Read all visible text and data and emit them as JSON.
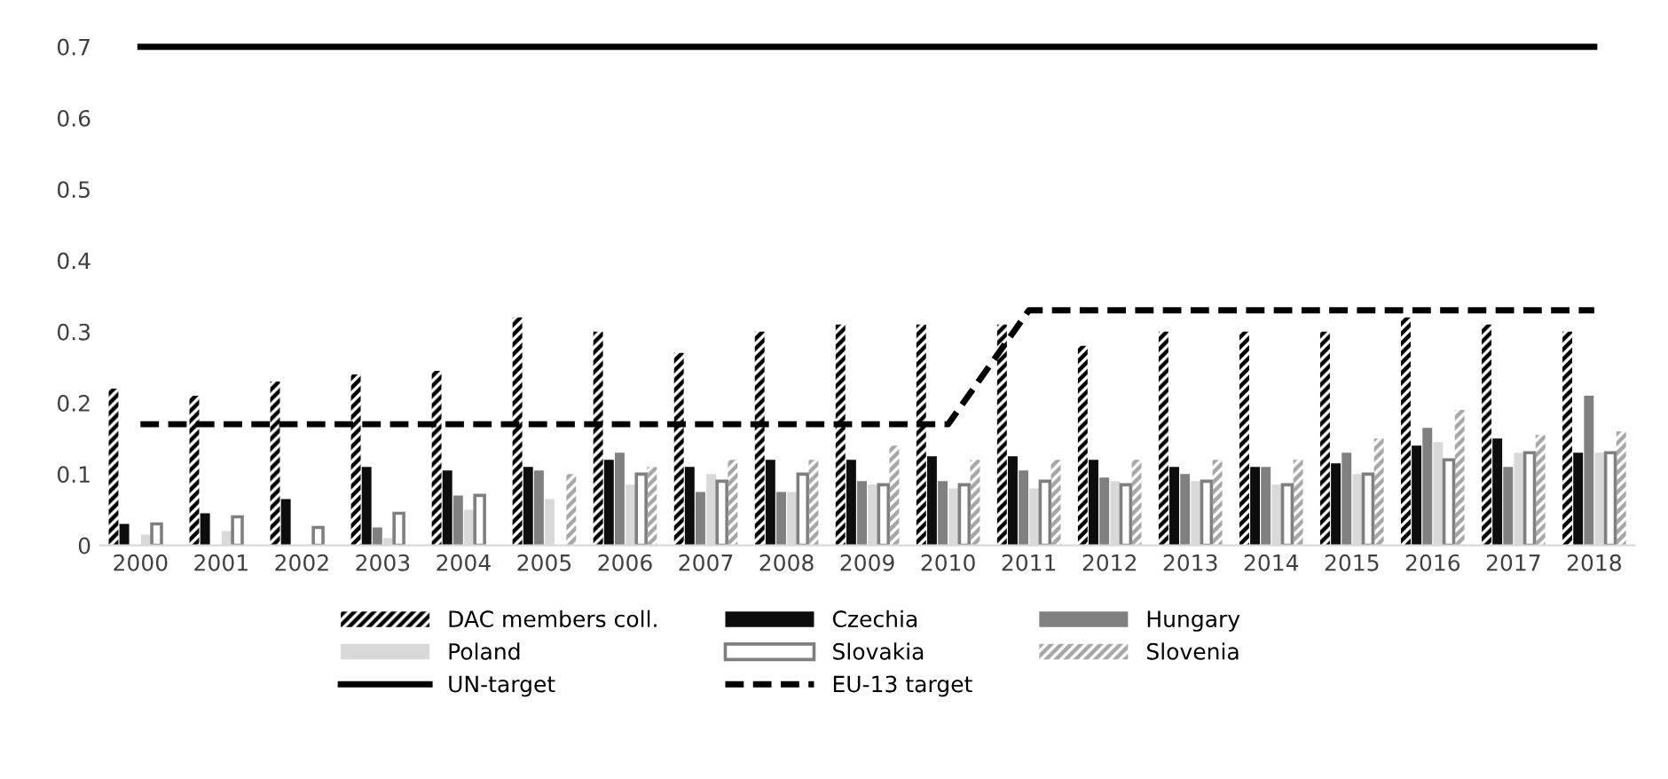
{
  "chart_data": {
    "type": "bar",
    "categories": [
      "2000",
      "2001",
      "2002",
      "2003",
      "2004",
      "2005",
      "2006",
      "2007",
      "2008",
      "2009",
      "2010",
      "2011",
      "2012",
      "2013",
      "2014",
      "2015",
      "2016",
      "2017",
      "2018"
    ],
    "series": [
      {
        "name": "DAC members coll.",
        "color": "#000000",
        "values": [
          0.22,
          0.21,
          0.23,
          0.24,
          0.245,
          0.32,
          0.3,
          0.27,
          0.3,
          0.31,
          0.31,
          0.31,
          0.28,
          0.3,
          0.3,
          0.3,
          0.32,
          0.31,
          0.3
        ]
      },
      {
        "name": "Czechia",
        "color": "#0d0d0d",
        "values": [
          0.03,
          0.045,
          0.065,
          0.11,
          0.105,
          0.11,
          0.12,
          0.11,
          0.12,
          0.12,
          0.125,
          0.125,
          0.12,
          0.11,
          0.11,
          0.115,
          0.14,
          0.15,
          0.13
        ]
      },
      {
        "name": "Hungary",
        "color": "#808080",
        "values": [
          null,
          null,
          null,
          0.025,
          0.07,
          0.105,
          0.13,
          0.075,
          0.075,
          0.09,
          0.09,
          0.105,
          0.095,
          0.1,
          0.11,
          0.13,
          0.165,
          0.11,
          0.21
        ]
      },
      {
        "name": "Poland",
        "color": "#d9d9d9",
        "values": [
          0.015,
          0.02,
          null,
          0.01,
          0.05,
          0.065,
          0.085,
          0.1,
          0.075,
          0.085,
          0.08,
          0.08,
          0.09,
          0.09,
          0.085,
          0.1,
          0.145,
          0.13,
          0.13
        ]
      },
      {
        "name": "Slovakia",
        "color": "#7f7f7f",
        "values": [
          0.03,
          0.04,
          0.025,
          0.045,
          0.07,
          null,
          0.1,
          0.09,
          0.1,
          0.085,
          0.085,
          0.09,
          0.085,
          0.09,
          0.085,
          0.1,
          0.12,
          0.13,
          0.13
        ]
      },
      {
        "name": "Slovenia",
        "color": "#a6a6a6",
        "values": [
          null,
          null,
          null,
          null,
          null,
          0.1,
          0.11,
          0.12,
          0.12,
          0.14,
          0.12,
          0.12,
          0.12,
          0.12,
          0.12,
          0.15,
          0.19,
          0.155,
          0.16
        ]
      },
      {
        "name": "UN-target",
        "type": "line",
        "line_style": "solid",
        "color": "#000000",
        "values": [
          0.7,
          0.7,
          0.7,
          0.7,
          0.7,
          0.7,
          0.7,
          0.7,
          0.7,
          0.7,
          0.7,
          0.7,
          0.7,
          0.7,
          0.7,
          0.7,
          0.7,
          0.7,
          0.7
        ]
      },
      {
        "name": "EU-13 target",
        "type": "line",
        "line_style": "dashed",
        "color": "#000000",
        "values": [
          0.17,
          0.17,
          0.17,
          0.17,
          0.17,
          0.17,
          0.17,
          0.17,
          0.17,
          0.17,
          0.17,
          0.33,
          0.33,
          0.33,
          0.33,
          0.33,
          0.33,
          0.33,
          0.33
        ]
      }
    ],
    "ylim": [
      0,
      0.7
    ],
    "yticks": [
      0,
      0.1,
      0.2,
      0.3,
      0.4,
      0.5,
      0.6,
      0.7
    ],
    "grid": false,
    "legend": "bottom"
  }
}
